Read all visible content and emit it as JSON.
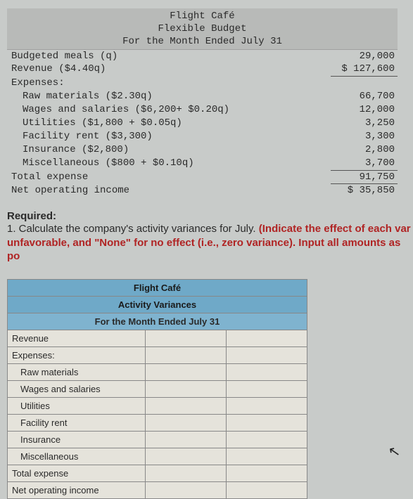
{
  "budget": {
    "title1": "Flight Café",
    "title2": "Flexible Budget",
    "title3": "For the Month Ended July 31",
    "rows": [
      {
        "label": "Budgeted meals (q)",
        "value": "29,000",
        "indent": 1,
        "underline": false
      },
      {
        "label": "Revenue ($4.40q)",
        "value": "$ 127,600",
        "indent": 1,
        "underline": true
      },
      {
        "label": "Expenses:",
        "value": "",
        "indent": 1,
        "underline": false
      },
      {
        "label": "Raw materials ($2.30q)",
        "value": "66,700",
        "indent": 2,
        "underline": false
      },
      {
        "label": "Wages and salaries ($6,200+ $0.20q)",
        "value": "12,000",
        "indent": 2,
        "underline": false
      },
      {
        "label": "Utilities ($1,800 + $0.05q)",
        "value": "3,250",
        "indent": 2,
        "underline": false
      },
      {
        "label": "Facility rent ($3,300)",
        "value": "3,300",
        "indent": 2,
        "underline": false
      },
      {
        "label": "Insurance ($2,800)",
        "value": "2,800",
        "indent": 2,
        "underline": false
      },
      {
        "label": "Miscellaneous ($800 + $0.10q)",
        "value": "3,700",
        "indent": 2,
        "underline": true
      },
      {
        "label": "Total expense",
        "value": "91,750",
        "indent": 1,
        "underline": true
      },
      {
        "label": "Net operating income",
        "value": "$ 35,850",
        "indent": 1,
        "underline": false
      }
    ]
  },
  "required": {
    "heading": "Required:",
    "line1a": "1. Calculate the company's activity variances for July. ",
    "line1b": "(Indicate the effect of each var",
    "line2": "unfavorable, and \"None\" for no effect (i.e., zero variance). Input all amounts as po"
  },
  "var_table": {
    "h1": "Flight Café",
    "h2": "Activity Variances",
    "h3": "For the Month Ended July 31",
    "rows": [
      {
        "label": "Revenue",
        "indent": false
      },
      {
        "label": "Expenses:",
        "indent": false
      },
      {
        "label": "Raw materials",
        "indent": true
      },
      {
        "label": "Wages and salaries",
        "indent": true
      },
      {
        "label": "Utilities",
        "indent": true
      },
      {
        "label": "Facility rent",
        "indent": true
      },
      {
        "label": "Insurance",
        "indent": true
      },
      {
        "label": "Miscellaneous",
        "indent": true
      },
      {
        "label": "Total expense",
        "indent": false
      },
      {
        "label": "Net operating income",
        "indent": false
      }
    ]
  }
}
